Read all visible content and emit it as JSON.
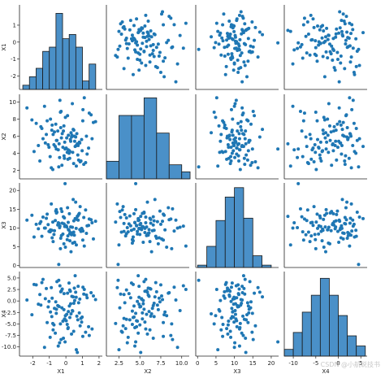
{
  "chart_data": {
    "type": "scatter",
    "layout": "pairplot",
    "variables": [
      "X1",
      "X2",
      "X3",
      "X4"
    ],
    "diagonal": "histogram",
    "grid": false,
    "point_color": "#1f77b4",
    "bar_color": "#4a90c8",
    "ranges": {
      "X1": [
        -2.8,
        2.2
      ],
      "X2": [
        1.0,
        10.9
      ],
      "X3": [
        -0.5,
        22.0
      ],
      "X4": [
        -12.0,
        6.4
      ]
    },
    "ticks": {
      "X1": [
        -2,
        -1,
        0,
        1,
        2
      ],
      "X2": [
        2.5,
        5.0,
        7.5,
        10.0
      ],
      "X3": [
        0,
        5,
        10,
        15,
        20
      ],
      "X4": [
        -10.0,
        -7.5,
        -5.0,
        -2.5,
        0.0,
        2.5,
        5.0
      ]
    },
    "ytick_labels": {
      "X1": [
        "-2",
        "-1",
        "0",
        "1"
      ],
      "X2": [
        "2",
        "4",
        "6",
        "8",
        "10"
      ],
      "X3": [
        "0",
        "5",
        "10",
        "15",
        "20"
      ],
      "X4": [
        "-10.0",
        "-7.5",
        "-5.0",
        "-2.5",
        "0.0",
        "2.5",
        "5.0"
      ]
    },
    "ytick_values": {
      "X1": [
        -2,
        -1,
        0,
        1
      ],
      "X2": [
        2,
        4,
        6,
        8,
        10
      ],
      "X3": [
        0,
        5,
        10,
        15,
        20
      ],
      "X4": [
        -10.0,
        -7.5,
        -5.0,
        -2.5,
        0.0,
        2.5,
        5.0
      ]
    },
    "xtick_labels": {
      "X1": [
        "-2",
        "-1",
        "0",
        "1",
        "2"
      ],
      "X2": [
        "2.5",
        "5.0",
        "7.5",
        "10.0"
      ],
      "X3": [
        "0",
        "5",
        "10",
        "15",
        "20"
      ],
      "X4": [
        "-10",
        "-5",
        "0",
        "5"
      ]
    },
    "xtick_values": {
      "X1": [
        -2,
        -1,
        0,
        1,
        2
      ],
      "X2": [
        2.5,
        5.0,
        7.5,
        10.0
      ],
      "X3": [
        0,
        5,
        10,
        15,
        20
      ],
      "X4": [
        -10,
        -5,
        0,
        5
      ]
    },
    "histograms": {
      "X1": {
        "edges": [
          -2.6,
          -2.2,
          -1.8,
          -1.4,
          -1.0,
          -0.6,
          -0.2,
          0.2,
          0.6,
          1.0,
          1.4,
          1.8
        ],
        "counts": [
          1,
          3,
          5,
          9,
          10,
          18,
          12,
          13,
          10,
          2,
          6
        ],
        "ymax": 20
      },
      "X2": {
        "edges": [
          1.0,
          2.5,
          4.0,
          5.5,
          7.0,
          8.5,
          10.0,
          11.0
        ],
        "counts": [
          5,
          18,
          18,
          23,
          13,
          4,
          2
        ],
        "ymax": 24
      },
      "X3": {
        "edges": [
          0,
          2.5,
          5,
          7.5,
          10,
          12.5,
          15,
          17.5,
          20
        ],
        "counts": [
          1,
          9,
          20,
          30,
          34,
          21,
          5,
          1
        ],
        "ymax": 36
      },
      "X4": {
        "edges": [
          -12,
          -10,
          -8,
          -6,
          -4,
          -2,
          0,
          2,
          4,
          6
        ],
        "counts": [
          2,
          7,
          13,
          18,
          23,
          18,
          12,
          6,
          3
        ],
        "ymax": 25
      }
    },
    "samples": {
      "X1": [
        -0.41,
        0.23,
        -1.13,
        0.62,
        -0.77,
        1.08,
        0.05,
        -0.29,
        -1.92,
        0.48,
        0.91,
        -0.54,
        -0.12,
        1.37,
        -2.35,
        0.34,
        -0.88,
        0.15,
        -0.46,
        1.66,
        0.72,
        -1.24,
        -0.03,
        0.56,
        -0.69,
        1.19,
        0.27,
        -1.51,
        0.08,
        -0.36,
        0.81,
        -0.95,
        0.44,
        -0.18,
        1.52,
        -1.07,
        0.63,
        -0.22,
        0.98,
        -0.61,
        0.12,
        -1.38,
        0.39,
        -0.05,
        1.24,
        -0.79,
        0.53,
        -2.05,
        0.19,
        -0.49,
        0.86,
        -0.27,
        1.41,
        -1.66,
        0.31,
        -0.11,
        0.69,
        -0.83,
        0.02,
        1.03,
        -0.57,
        0.47,
        -1.18,
        0.24,
        1.79,
        -0.38,
        0.59,
        -0.93,
        0.14,
        -1.45,
        0.77,
        -0.07,
        1.11,
        -0.64,
        0.36,
        -0.24,
        0.95,
        -1.79,
        0.41,
        -0.15,
        1.28,
        -0.72,
        0.1,
        -1.02,
        0.66,
        -0.43,
        1.58,
        -0.31,
        0.21,
        -1.29,
        0.84,
        -0.09,
        0.51,
        -0.58,
        1.02,
        -1.57,
        0.29,
        -0.33,
        0.74,
        -0.85
      ],
      "X2": [
        5.1,
        3.4,
        7.8,
        4.9,
        6.2,
        2.7,
        5.8,
        8.9,
        4.2,
        6.7,
        3.1,
        5.5,
        7.2,
        4.6,
        9.3,
        5.9,
        2.3,
        6.1,
        4.4,
        7.6,
        3.8,
        5.2,
        8.2,
        4.8,
        6.5,
        2.9,
        5.6,
        7.1,
        4.1,
        10.2,
        5.3,
        3.6,
        6.8,
        4.7,
        8.5,
        5.0,
        2.5,
        6.3,
        4.3,
        7.4,
        3.3,
        5.7,
        9.8,
        4.5,
        6.0,
        2.1,
        5.4,
        7.9,
        4.0,
        6.6,
        3.0,
        5.8,
        8.7,
        4.9,
        6.4,
        3.7,
        5.1,
        7.3,
        4.6,
        9.1,
        5.5,
        2.8,
        6.2,
        4.2,
        7.7,
        3.5,
        5.9,
        8.0,
        4.4,
        6.9,
        3.2,
        5.3,
        10.5,
        4.8,
        6.1,
        2.6,
        5.6,
        7.5,
        4.1,
        6.6,
        3.9,
        5.0,
        8.4,
        4.7,
        6.3,
        2.4,
        5.7,
        7.0,
        4.3,
        9.5,
        5.2,
        3.4,
        6.0,
        4.5,
        7.8,
        3.1,
        5.4,
        8.8,
        4.9,
        6.7
      ],
      "X3": [
        11.2,
        8.5,
        13.7,
        9.9,
        6.4,
        12.8,
        10.3,
        15.1,
        7.6,
        11.9,
        9.1,
        14.2,
        5.8,
        10.7,
        12.1,
        8.2,
        16.4,
        9.6,
        11.4,
        7.1,
        13.2,
        10.0,
        4.9,
        12.5,
        9.3,
        14.8,
        8.8,
        11.7,
        6.9,
        10.5,
        13.9,
        9.0,
        17.6,
        8.4,
        12.2,
        10.9,
        5.5,
        11.3,
        9.7,
        14.5,
        7.9,
        12.9,
        10.2,
        21.8,
        8.6,
        11.6,
        6.2,
        13.4,
        9.4,
        10.8,
        15.7,
        8.0,
        12.4,
        9.8,
        3.7,
        11.1,
        13.1,
        7.4,
        10.6,
        9.2,
        14.0,
        8.9,
        12.6,
        6.6,
        11.8,
        10.1,
        16.9,
        9.5,
        11.5,
        7.8,
        13.6,
        10.4,
        5.2,
        12.0,
        8.7,
        14.4,
        9.9,
        11.0,
        6.0,
        13.0,
        10.6,
        8.3,
        15.4,
        9.1,
        12.3,
        0.3,
        11.4,
        7.3,
        13.8,
        10.0,
        9.6,
        12.7,
        8.1,
        14.9,
        6.8,
        11.2,
        10.3,
        4.5,
        12.1,
        9.4
      ],
      "X4": [
        -1.2,
        2.4,
        -4.7,
        0.8,
        -6.3,
        1.5,
        -2.9,
        -8.4,
        3.6,
        -0.5,
        -3.8,
        4.2,
        -1.9,
        -5.6,
        0.2,
        -7.2,
        2.9,
        -2.3,
        -9.8,
        1.1,
        -4.1,
        0.5,
        -3.2,
        5.5,
        -1.6,
        -6.8,
        2.1,
        -0.9,
        -5.1,
        3.3,
        -2.6,
        -7.9,
        0.9,
        -4.4,
        1.8,
        -1.3,
        -10.6,
        2.6,
        -3.5,
        -0.2,
        -6.0,
        4.7,
        -2.1,
        -8.9,
        1.3,
        -4.9,
        0.1,
        -3.0,
        3.9,
        -1.0,
        -5.4,
        2.2,
        -7.5,
        -0.7,
        -2.8,
        1.6,
        -11.2,
        0.6,
        -4.3,
        3.0,
        -1.8,
        -6.6,
        2.7,
        -3.6,
        0.3,
        -9.1,
        1.9,
        -2.4,
        -5.8,
        4.0,
        -0.4,
        -3.9,
        2.5,
        -7.0,
        1.0,
        -1.5,
        -4.6,
        3.5,
        -2.2,
        -8.1,
        0.7,
        -5.2,
        1.7,
        -0.1,
        -3.3,
        4.5,
        -6.1,
        2.0,
        -1.1,
        -10.1,
        0.4,
        -4.0,
        2.8,
        -2.7,
        -7.7,
        1.4,
        -0.6,
        -5.0,
        3.2,
        -3.4
      ]
    }
  },
  "watermark_text": "CSDN @小航说技书"
}
